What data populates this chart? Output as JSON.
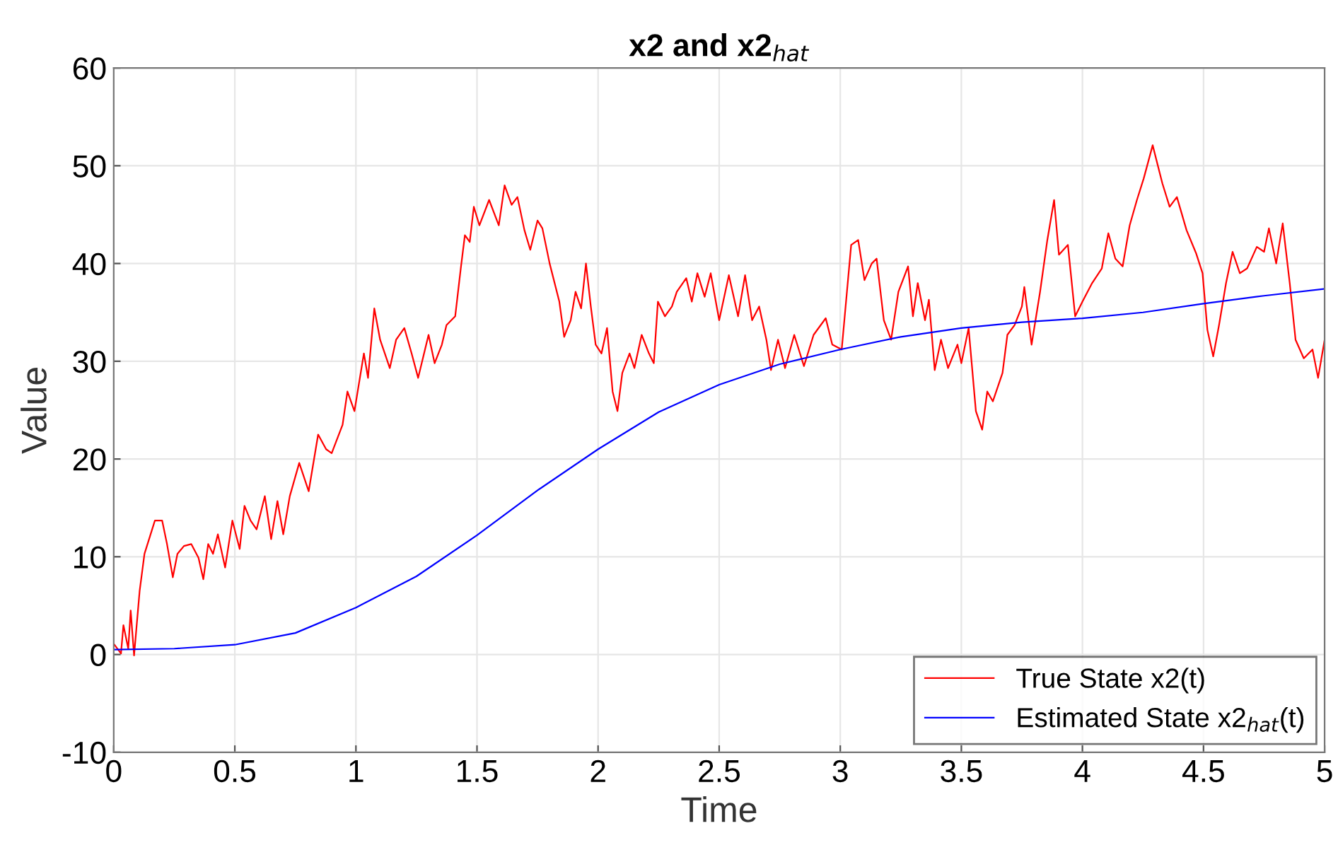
{
  "chart_data": {
    "type": "line",
    "title": "x2 and x2$_{hat}$",
    "xlabel": "Time",
    "ylabel": "Value",
    "xlim": [
      0,
      5
    ],
    "ylim": [
      -10,
      60
    ],
    "xticks": [
      0,
      0.5,
      1,
      1.5,
      2,
      2.5,
      3,
      3.5,
      4,
      4.5,
      5
    ],
    "yticks": [
      -10,
      0,
      10,
      20,
      30,
      40,
      50,
      60
    ],
    "grid": true,
    "legend": "bottom right",
    "line_style": "solid",
    "series": [
      {
        "name": "True State x2(t)",
        "color": "#ff0000",
        "x": [
          0,
          0.03,
          0.04,
          0.06,
          0.07,
          0.084,
          0.107,
          0.127,
          0.146,
          0.17,
          0.2,
          0.22,
          0.244,
          0.263,
          0.29,
          0.32,
          0.35,
          0.37,
          0.39,
          0.41,
          0.43,
          0.46,
          0.49,
          0.52,
          0.54,
          0.565,
          0.59,
          0.624,
          0.65,
          0.676,
          0.7,
          0.727,
          0.766,
          0.805,
          0.844,
          0.877,
          0.9,
          0.945,
          0.965,
          0.994,
          1.033,
          1.05,
          1.076,
          1.1,
          1.14,
          1.166,
          1.2,
          1.23,
          1.257,
          1.3,
          1.325,
          1.355,
          1.374,
          1.41,
          1.433,
          1.45,
          1.47,
          1.487,
          1.51,
          1.55,
          1.59,
          1.614,
          1.643,
          1.667,
          1.696,
          1.72,
          1.75,
          1.77,
          1.8,
          1.84,
          1.86,
          1.887,
          1.907,
          1.93,
          1.95,
          1.97,
          1.99,
          2.014,
          2.037,
          2.06,
          2.08,
          2.1,
          2.13,
          2.15,
          2.18,
          2.21,
          2.23,
          2.247,
          2.276,
          2.305,
          2.325,
          2.364,
          2.387,
          2.41,
          2.44,
          2.465,
          2.5,
          2.54,
          2.578,
          2.607,
          2.636,
          2.665,
          2.695,
          2.714,
          2.743,
          2.772,
          2.81,
          2.85,
          2.89,
          2.94,
          2.967,
          3.006,
          3.045,
          3.074,
          3.1,
          3.13,
          3.15,
          3.18,
          3.21,
          3.24,
          3.28,
          3.3,
          3.32,
          3.35,
          3.366,
          3.39,
          3.416,
          3.445,
          3.484,
          3.5,
          3.53,
          3.56,
          3.586,
          3.607,
          3.63,
          3.67,
          3.69,
          3.72,
          3.75,
          3.76,
          3.79,
          3.825,
          3.855,
          3.883,
          3.903,
          3.94,
          3.97,
          4.0,
          4.04,
          4.08,
          4.107,
          4.136,
          4.166,
          4.195,
          4.225,
          4.253,
          4.29,
          4.33,
          4.36,
          4.39,
          4.43,
          4.47,
          4.496,
          4.516,
          4.54,
          4.564,
          4.593,
          4.62,
          4.65,
          4.68,
          4.72,
          4.75,
          4.77,
          4.8,
          4.827,
          4.856,
          4.88,
          4.914,
          4.95,
          4.973,
          5
        ],
        "values": [
          1.1,
          0.1,
          3,
          0.6,
          4.5,
          -0.1,
          6.5,
          10.3,
          11.8,
          13.7,
          13.7,
          11.3,
          7.9,
          10.3,
          11.1,
          11.3,
          9.9,
          7.7,
          11.3,
          10.3,
          12.3,
          8.9,
          13.7,
          10.8,
          15.2,
          13.7,
          12.8,
          16.2,
          11.8,
          15.7,
          12.3,
          16.2,
          19.6,
          16.7,
          22.5,
          21,
          20.6,
          23.5,
          26.9,
          24.9,
          30.8,
          28.3,
          35.4,
          32.2,
          29.3,
          32.2,
          33.4,
          30.8,
          28.3,
          32.7,
          29.8,
          31.7,
          33.7,
          34.6,
          39.5,
          42.9,
          42.2,
          45.8,
          43.9,
          46.5,
          43.9,
          48,
          46,
          46.8,
          43.4,
          41.4,
          44.4,
          43.6,
          40,
          36.1,
          32.5,
          34.2,
          37.1,
          35.4,
          40,
          35.6,
          31.7,
          30.8,
          33.4,
          26.9,
          24.9,
          28.8,
          30.8,
          29.3,
          32.7,
          30.8,
          29.8,
          36.1,
          34.6,
          35.6,
          37.1,
          38.5,
          36.1,
          39,
          36.6,
          39,
          34.2,
          38.8,
          34.6,
          38.8,
          34.2,
          35.6,
          32.2,
          29.1,
          32.2,
          29.3,
          32.7,
          29.5,
          32.7,
          34.4,
          31.7,
          31.2,
          41.9,
          42.4,
          38.3,
          40,
          40.5,
          34.2,
          32.2,
          37.1,
          39.7,
          34.6,
          38,
          34.2,
          36.3,
          29.1,
          32.2,
          29.3,
          31.7,
          29.8,
          33.4,
          24.9,
          23,
          26.9,
          25.9,
          28.8,
          32.7,
          33.7,
          35.6,
          37.6,
          31.7,
          37.1,
          42.4,
          46.5,
          40.9,
          41.9,
          34.6,
          36.1,
          38,
          39.5,
          43.1,
          40.5,
          39.7,
          43.9,
          46.5,
          48.7,
          52.1,
          48.2,
          45.8,
          46.8,
          43.4,
          41,
          39,
          33.2,
          30.5,
          33.7,
          38,
          41.2,
          39,
          39.5,
          41.7,
          41.2,
          43.6,
          40,
          44.1,
          38,
          32.2,
          30.3,
          31.2,
          28.3,
          32.2
        ]
      },
      {
        "name": "Estimated State x2$_{hat}$(t)",
        "color": "#0000ff",
        "x": [
          0,
          0.25,
          0.5,
          0.75,
          1,
          1.25,
          1.5,
          1.75,
          2,
          2.25,
          2.5,
          2.75,
          3,
          3.25,
          3.5,
          3.75,
          4,
          4.25,
          4.5,
          4.75,
          5
        ],
        "values": [
          0.5,
          0.6,
          1.0,
          2.2,
          4.8,
          8.0,
          12.2,
          16.8,
          21.0,
          24.8,
          27.6,
          29.7,
          31.2,
          32.5,
          33.4,
          34.0,
          34.4,
          35.0,
          35.9,
          36.7,
          37.4
        ]
      }
    ]
  }
}
